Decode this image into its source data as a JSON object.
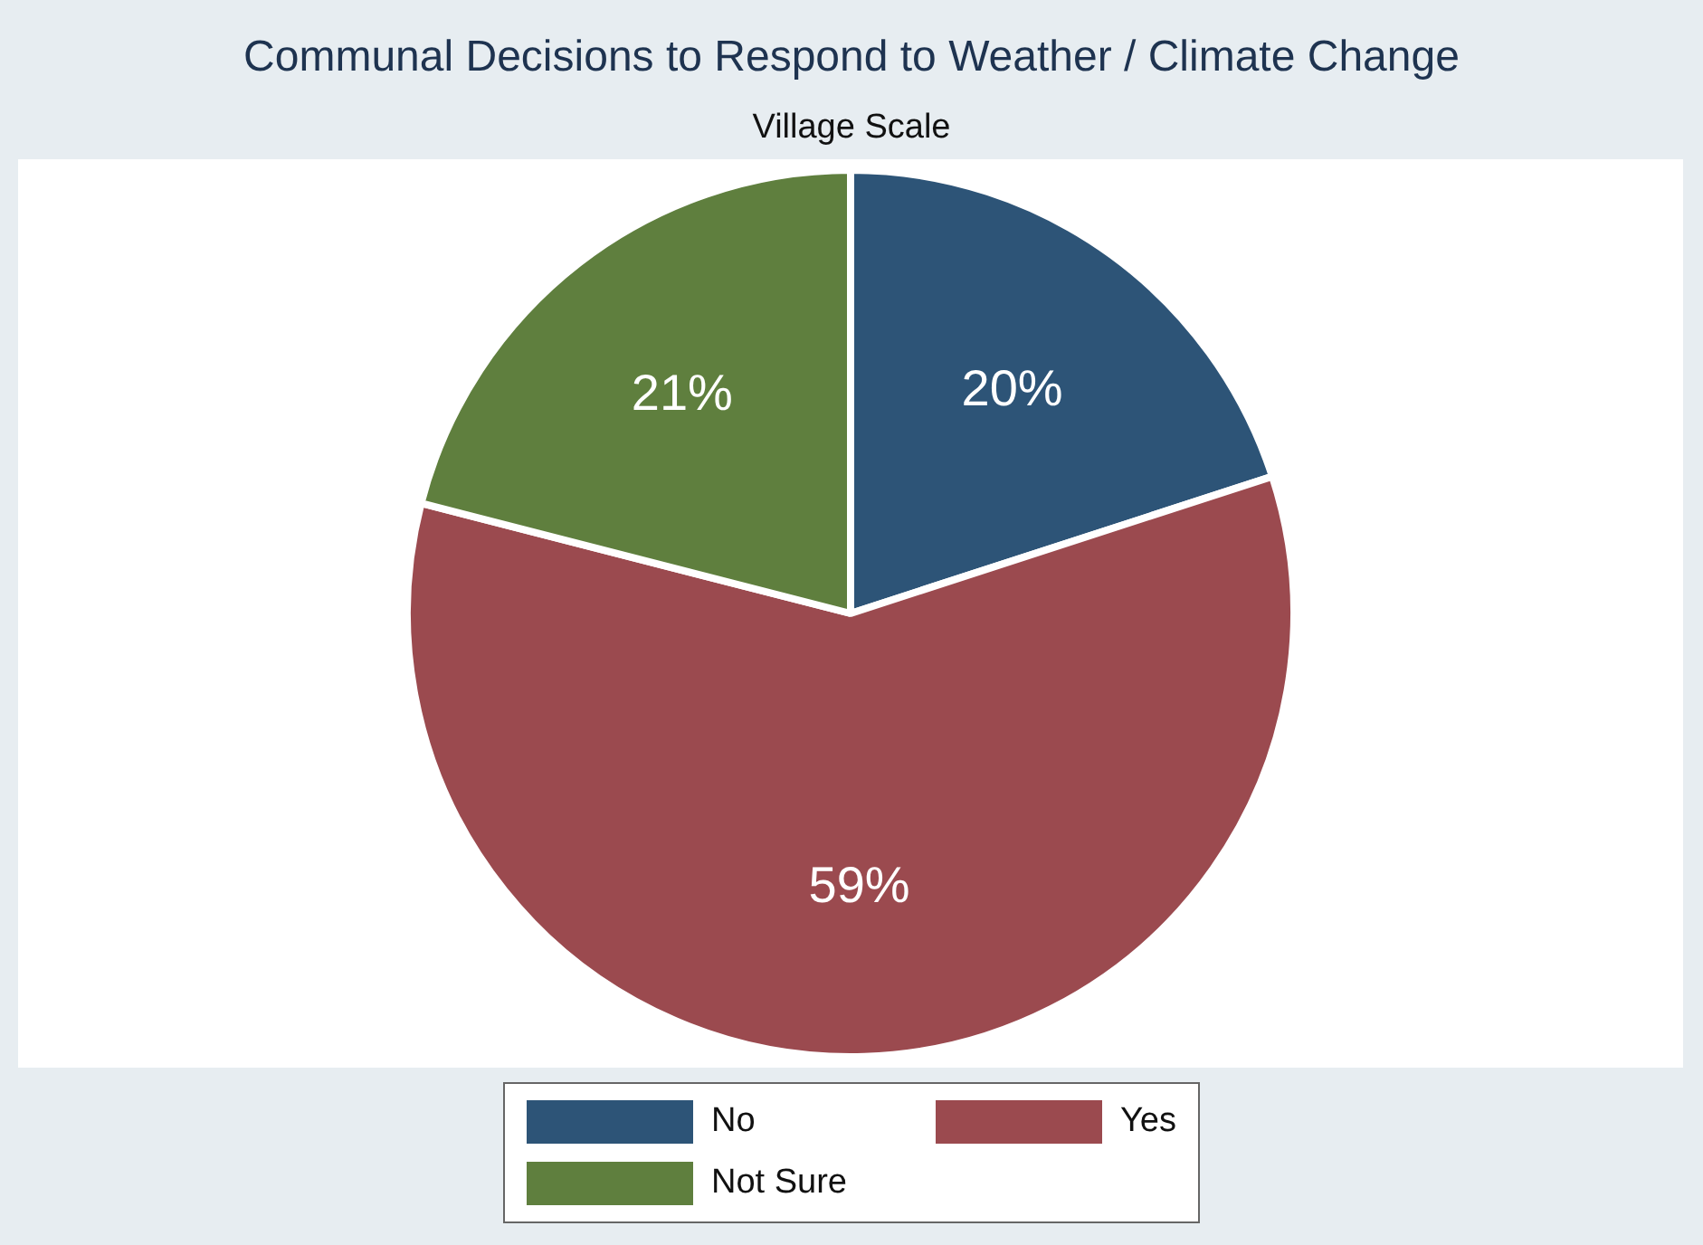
{
  "chart_data": {
    "type": "pie",
    "title": "Communal Decisions to Respond to Weather / Climate Change",
    "subtitle": "Village Scale",
    "categories": [
      "No",
      "Yes",
      "Not Sure"
    ],
    "values": [
      20,
      59,
      21
    ],
    "colors": [
      "#2d5477",
      "#9b4a4f",
      "#5f7f3e"
    ],
    "value_labels": [
      "20%",
      "59%",
      "21%"
    ],
    "legend": "bottom"
  }
}
